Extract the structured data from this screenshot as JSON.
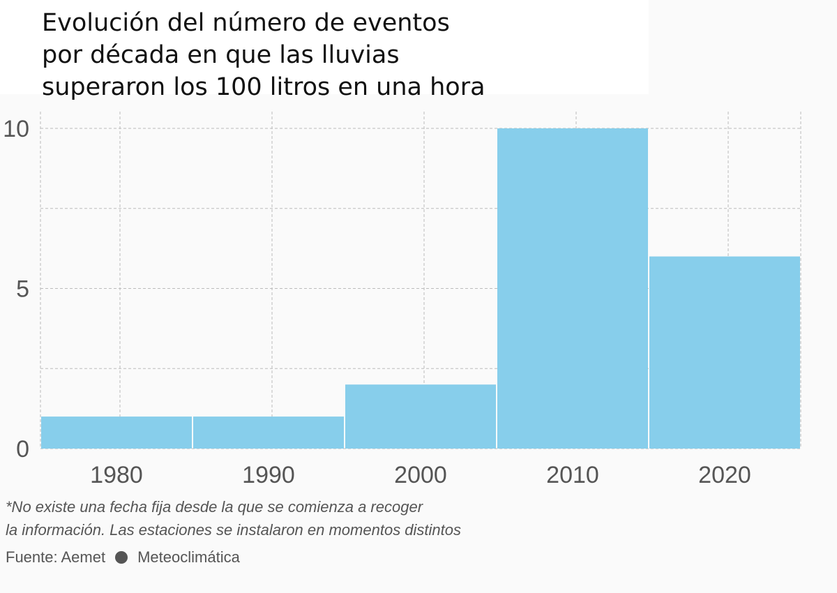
{
  "chart_data": {
    "type": "bar",
    "title": "Evolución del número de eventos\npor década en que las lluvias\nsuperaron los 100 litros en una hora",
    "categories": [
      "1980",
      "1990",
      "2000",
      "2010",
      "2020"
    ],
    "values": [
      1,
      1,
      2,
      10,
      6
    ],
    "ylim": [
      0,
      10
    ],
    "yticks": [
      "0",
      "5",
      "10"
    ],
    "grid": true,
    "bar_color": "#87ceeb",
    "xlabel": "",
    "ylabel": ""
  },
  "footnote": "*No existe una fecha fija desde la que se comienza a recoger\nla información. Las estaciones se instalaron en momentos distintos",
  "source": {
    "prefix": "Fuente: Aemet",
    "second": "Meteoclimática"
  }
}
